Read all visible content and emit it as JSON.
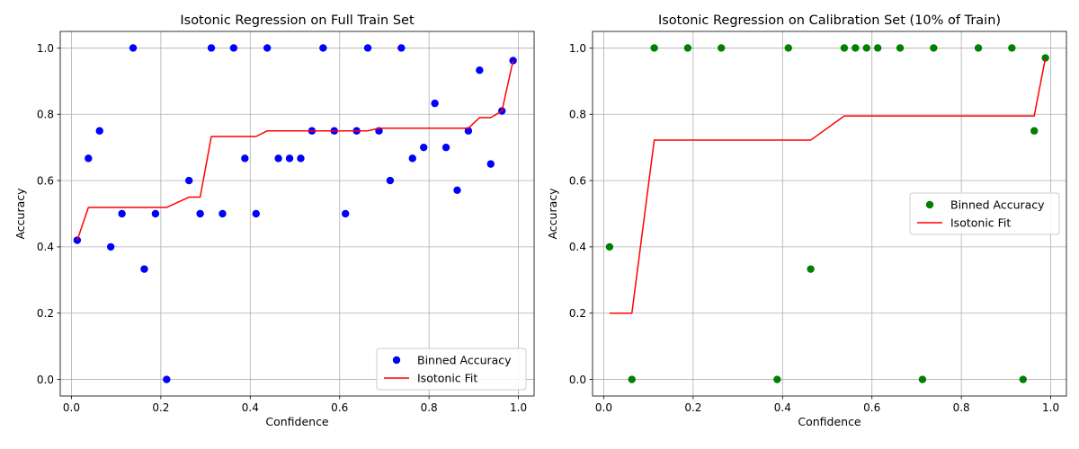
{
  "chart_data": [
    {
      "type": "scatter",
      "title": "Isotonic Regression on Full Train Set",
      "xlabel": "Confidence",
      "ylabel": "Accuracy",
      "xlim": [
        -0.025,
        1.035
      ],
      "ylim": [
        -0.05,
        1.05
      ],
      "xticks": [
        0.0,
        0.2,
        0.4,
        0.6,
        0.8,
        1.0
      ],
      "yticks": [
        0.0,
        0.2,
        0.4,
        0.6,
        0.8,
        1.0
      ],
      "xtick_labels": [
        "0.0",
        "0.2",
        "0.4",
        "0.6",
        "0.8",
        "1.0"
      ],
      "ytick_labels": [
        "0.0",
        "0.2",
        "0.4",
        "0.6",
        "0.8",
        "1.0"
      ],
      "grid": true,
      "legend_position": "lower-right",
      "series": [
        {
          "name": "Binned Accuracy",
          "kind": "scatter",
          "color": "#0000ff",
          "points": [
            [
              0.013,
              0.42
            ],
            [
              0.038,
              0.667
            ],
            [
              0.063,
              0.75
            ],
            [
              0.088,
              0.4
            ],
            [
              0.113,
              0.5
            ],
            [
              0.138,
              1.0
            ],
            [
              0.163,
              0.333
            ],
            [
              0.188,
              0.5
            ],
            [
              0.213,
              0.0
            ],
            [
              0.263,
              0.6
            ],
            [
              0.288,
              0.5
            ],
            [
              0.313,
              1.0
            ],
            [
              0.338,
              0.5
            ],
            [
              0.363,
              1.0
            ],
            [
              0.388,
              0.667
            ],
            [
              0.413,
              0.5
            ],
            [
              0.438,
              1.0
            ],
            [
              0.463,
              0.667
            ],
            [
              0.488,
              0.667
            ],
            [
              0.513,
              0.667
            ],
            [
              0.538,
              0.75
            ],
            [
              0.563,
              1.0
            ],
            [
              0.588,
              0.75
            ],
            [
              0.613,
              0.5
            ],
            [
              0.638,
              0.75
            ],
            [
              0.663,
              1.0
            ],
            [
              0.688,
              0.75
            ],
            [
              0.713,
              0.6
            ],
            [
              0.738,
              1.0
            ],
            [
              0.763,
              0.667
            ],
            [
              0.788,
              0.7
            ],
            [
              0.813,
              0.833
            ],
            [
              0.838,
              0.7
            ],
            [
              0.863,
              0.571
            ],
            [
              0.888,
              0.75
            ],
            [
              0.913,
              0.933
            ],
            [
              0.938,
              0.65
            ],
            [
              0.963,
              0.81
            ],
            [
              0.988,
              0.962
            ]
          ]
        },
        {
          "name": "Isotonic Fit",
          "kind": "line",
          "color": "#ff0000",
          "points": [
            [
              0.013,
              0.42
            ],
            [
              0.038,
              0.519
            ],
            [
              0.213,
              0.519
            ],
            [
              0.263,
              0.55
            ],
            [
              0.288,
              0.55
            ],
            [
              0.313,
              0.733
            ],
            [
              0.413,
              0.733
            ],
            [
              0.438,
              0.75
            ],
            [
              0.663,
              0.75
            ],
            [
              0.688,
              0.758
            ],
            [
              0.888,
              0.758
            ],
            [
              0.913,
              0.79
            ],
            [
              0.938,
              0.79
            ],
            [
              0.963,
              0.81
            ],
            [
              0.988,
              0.962
            ]
          ]
        }
      ]
    },
    {
      "type": "scatter",
      "title": "Isotonic Regression on Calibration Set (10% of Train)",
      "xlabel": "Confidence",
      "ylabel": "Accuracy",
      "xlim": [
        -0.025,
        1.035
      ],
      "ylim": [
        -0.05,
        1.05
      ],
      "xticks": [
        0.0,
        0.2,
        0.4,
        0.6,
        0.8,
        1.0
      ],
      "yticks": [
        0.0,
        0.2,
        0.4,
        0.6,
        0.8,
        1.0
      ],
      "xtick_labels": [
        "0.0",
        "0.2",
        "0.4",
        "0.6",
        "0.8",
        "1.0"
      ],
      "ytick_labels": [
        "0.0",
        "0.2",
        "0.4",
        "0.6",
        "0.8",
        "1.0"
      ],
      "grid": true,
      "legend_position": "center-right",
      "series": [
        {
          "name": "Binned Accuracy",
          "kind": "scatter",
          "color": "#008000",
          "points": [
            [
              0.013,
              0.4
            ],
            [
              0.063,
              0.0
            ],
            [
              0.113,
              1.0
            ],
            [
              0.188,
              1.0
            ],
            [
              0.263,
              1.0
            ],
            [
              0.388,
              0.0
            ],
            [
              0.413,
              1.0
            ],
            [
              0.463,
              0.333
            ],
            [
              0.538,
              1.0
            ],
            [
              0.563,
              1.0
            ],
            [
              0.588,
              1.0
            ],
            [
              0.613,
              1.0
            ],
            [
              0.663,
              1.0
            ],
            [
              0.713,
              0.0
            ],
            [
              0.738,
              1.0
            ],
            [
              0.838,
              1.0
            ],
            [
              0.913,
              1.0
            ],
            [
              0.938,
              0.0
            ],
            [
              0.963,
              0.75
            ],
            [
              0.988,
              0.97
            ]
          ]
        },
        {
          "name": "Isotonic Fit",
          "kind": "line",
          "color": "#ff0000",
          "points": [
            [
              0.013,
              0.2
            ],
            [
              0.063,
              0.2
            ],
            [
              0.113,
              0.722
            ],
            [
              0.463,
              0.722
            ],
            [
              0.538,
              0.795
            ],
            [
              0.963,
              0.795
            ],
            [
              0.988,
              0.97
            ]
          ]
        }
      ]
    }
  ]
}
